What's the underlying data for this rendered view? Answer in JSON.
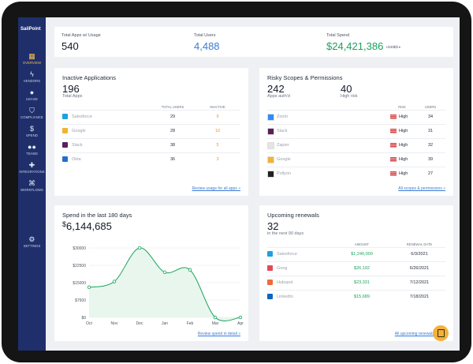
{
  "brand": "SailPoint",
  "nav": [
    {
      "label": "OVERVIEW",
      "icon": "grid-icon",
      "glyph": "▦",
      "active": true
    },
    {
      "label": "VENDORS",
      "icon": "lightning-icon",
      "glyph": "ϟ"
    },
    {
      "label": "USAGE",
      "icon": "user-icon",
      "glyph": "●"
    },
    {
      "label": "COMPLIANCE",
      "icon": "shield-icon",
      "glyph": "⛉"
    },
    {
      "label": "SPEND",
      "icon": "dollar-icon",
      "glyph": "$"
    },
    {
      "label": "TEAMS",
      "icon": "users-icon",
      "glyph": "●●"
    },
    {
      "label": "INTEGRATIONS",
      "icon": "puzzle-icon",
      "glyph": "✚"
    },
    {
      "label": "WORKFLOWS",
      "icon": "workflow-icon",
      "glyph": "⌘"
    }
  ],
  "settings": {
    "label": "SETTINGS",
    "icon": "gear-icon",
    "glyph": "⚙"
  },
  "summary": {
    "apps_label": "Total Apps w/ Usage",
    "apps_value": "540",
    "users_label": "Total Users",
    "users_value": "4,488",
    "spend_label": "Total Spend",
    "spend_value": "$24,421,386",
    "spend_unit": "USD$/$ ▾"
  },
  "inactive": {
    "title": "Inactive Applications",
    "count": "196",
    "count_label": "Total Apps",
    "col_total": "TOTAL USERS",
    "col_inactive": "INACTIVE",
    "rows": [
      {
        "name": "Salesforce",
        "total": "29",
        "inactive": "9",
        "color": "#1ea0e3"
      },
      {
        "name": "Google",
        "total": "28",
        "inactive": "10",
        "color": "#f2b233"
      },
      {
        "name": "Slack",
        "total": "38",
        "inactive": "5",
        "color": "#5a1f5c"
      },
      {
        "name": "Okta",
        "total": "36",
        "inactive": "3",
        "color": "#1f6fd1"
      }
    ],
    "link": "Review usage for all apps »"
  },
  "risky": {
    "title": "Risky Scopes & Permissions",
    "count": "242",
    "count_label": "Apps auth'd",
    "high_count": "40",
    "high_label": "High risk",
    "col_risk": "RISK",
    "col_users": "USERS",
    "rows": [
      {
        "name": "Zoom",
        "risk": "High",
        "users": "34",
        "color": "#2d8cff"
      },
      {
        "name": "Slack",
        "risk": "High",
        "users": "31",
        "color": "#5a1f5c"
      },
      {
        "name": "Zapier",
        "risk": "High",
        "users": "32",
        "color": "#e5e5e5"
      },
      {
        "name": "Google",
        "risk": "High",
        "users": "39",
        "color": "#f2b233"
      },
      {
        "name": "Pollyon",
        "risk": "High",
        "users": "27",
        "color": "#222222"
      }
    ],
    "link": "All scopes & permissions »"
  },
  "spend": {
    "title": "Spend in the last 180 days",
    "value": "6,144,685",
    "currency": "$",
    "link": "Review spend in detail »"
  },
  "chart_data": {
    "type": "area",
    "categories": [
      "Oct",
      "Nov",
      "Dec",
      "Jan",
      "Feb",
      "Mar",
      "Apr"
    ],
    "x": [
      0,
      1,
      2,
      3,
      4,
      5,
      6
    ],
    "values": [
      13000,
      15500,
      30000,
      19500,
      20500,
      0,
      0
    ],
    "yticks": [
      0,
      7500,
      15000,
      22500,
      30000
    ],
    "ytick_labels": [
      "$0",
      "$7500",
      "$15000",
      "$22500",
      "$30000"
    ],
    "ylim": [
      0,
      30000
    ],
    "line_color": "#1aa35a"
  },
  "renewals": {
    "title": "Upcoming renewals",
    "count": "32",
    "count_label": "in the next 90 days",
    "col_amount": "AMOUNT",
    "col_date": "RENEWAL DATE",
    "rows": [
      {
        "name": "Salesforce",
        "amount": "$1,240,000",
        "date": "6/3/2021",
        "color": "#1ea0e3"
      },
      {
        "name": "Gong",
        "amount": "$26,192",
        "date": "6/26/2021",
        "color": "#e24a5b"
      },
      {
        "name": "Hubspot",
        "amount": "$23,331",
        "date": "7/12/2021",
        "color": "#f06a3a"
      },
      {
        "name": "LinkedIn",
        "amount": "$15,689",
        "date": "7/18/2021",
        "color": "#0a66c2"
      }
    ],
    "link": "All upcoming renewals »"
  }
}
